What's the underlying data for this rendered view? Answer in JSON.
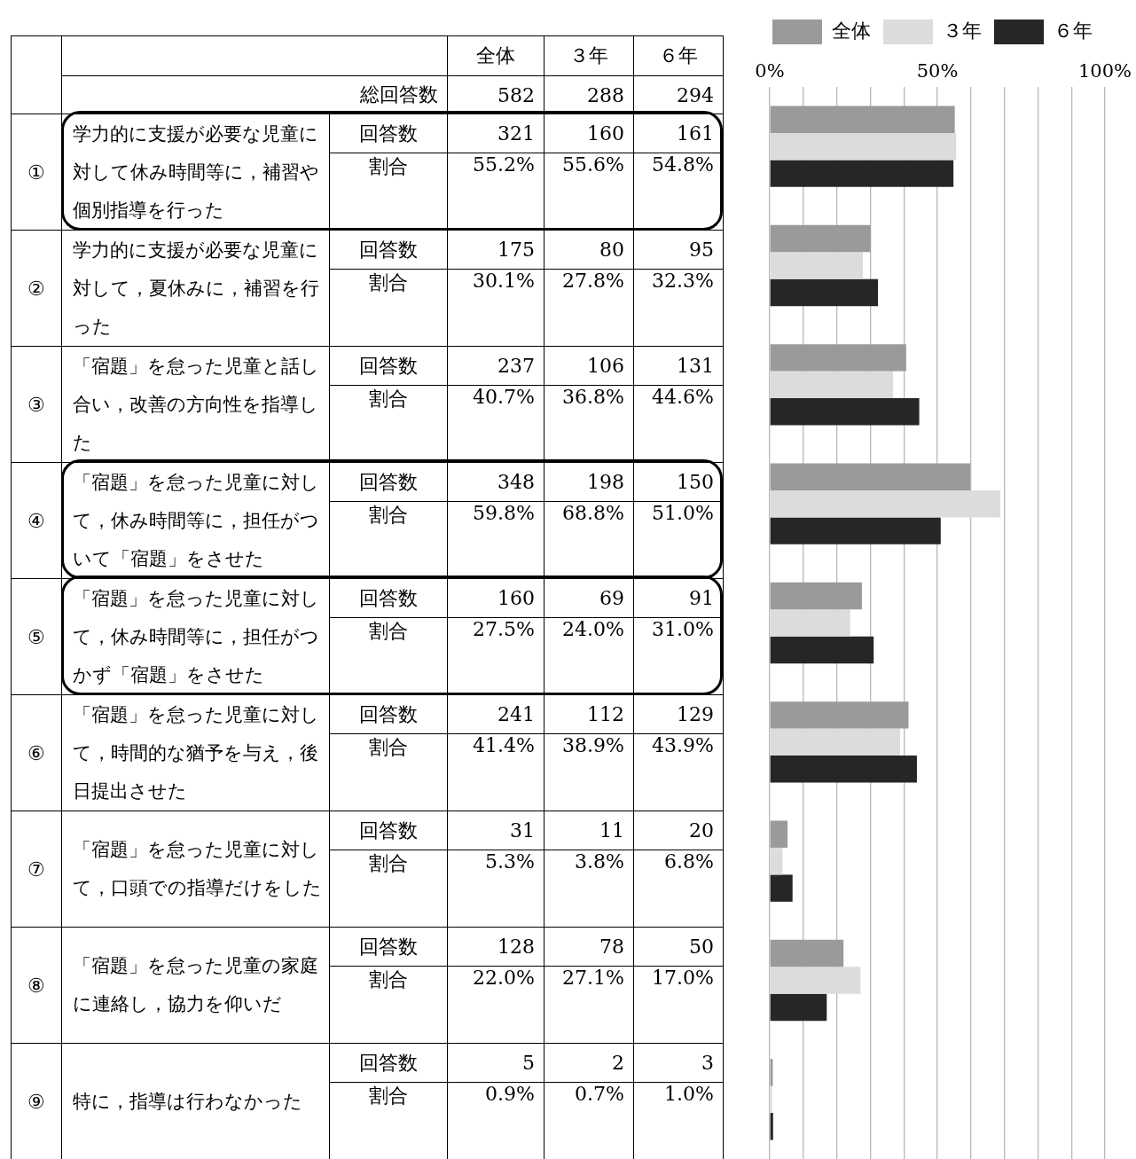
{
  "chart_data": [
    {
      "type": "other",
      "categories": [
        "学力的に支援が必要な児童に対して休み時間等に，補習や個別指導を行った",
        "学力的に支援が必要な児童に対して，夏休みに，補習を行った",
        "「宿題」を怠った児童と話し合い，改善の方向性を指導した",
        "「宿題」を怠った児童に対して，休み時間等に，担任がついて「宿題」をさせた",
        "「宿題」を怠った児童に対して，休み時間等に，担任がつかず「宿題」をさせた",
        "「宿題」を怠った児童に対して，時間的な猶予を与え，後日提出させた",
        "「宿題」を怠った児童に対して，口頭での指導だけをした",
        "「宿題」を怠った児童の家庭に連絡し，協力を仰いだ",
        "特に，指導は行わなかった"
      ],
      "totals": [
        "582",
        "288",
        "294"
      ],
      "annotations": [
        "総回答数",
        "回答数",
        "割合",
        "321",
        "160",
        "161",
        "175",
        "80",
        "95",
        "237",
        "106",
        "131",
        "348",
        "198",
        "150",
        "160",
        "69",
        "91",
        "241",
        "112",
        "129",
        "31",
        "11",
        "20",
        "128",
        "78",
        "50",
        "5",
        "2",
        "3"
      ]
    },
    {
      "type": "bar",
      "orientation": "horizontal",
      "categories": [
        "①",
        "②",
        "③",
        "④",
        "⑤",
        "⑥",
        "⑦",
        "⑧",
        "⑨"
      ],
      "series": [
        {
          "name": "全体",
          "color": "#9a9a9a",
          "values": [
            55.2,
            30.1,
            40.7,
            59.8,
            27.5,
            41.4,
            5.3,
            22.0,
            0.9
          ],
          "value_labels": [
            "55.2%",
            "30.1%",
            "40.7%",
            "59.8%",
            "27.5%",
            "41.4%",
            "5.3%",
            "22.0%",
            "0.9%"
          ]
        },
        {
          "name": "３年",
          "color": "#dcdcdc",
          "values": [
            55.6,
            27.8,
            36.8,
            68.8,
            24.0,
            38.9,
            3.8,
            27.1,
            0.7
          ],
          "value_labels": [
            "55.6%",
            "27.8%",
            "36.8%",
            "68.8%",
            "24.0%",
            "38.9%",
            "3.8%",
            "27.1%",
            "0.7%"
          ]
        },
        {
          "name": "６年",
          "color": "#262626",
          "values": [
            54.8,
            32.3,
            44.6,
            51.0,
            31.0,
            43.9,
            6.8,
            17.0,
            1.0
          ],
          "value_labels": [
            "54.8%",
            "32.3%",
            "44.6%",
            "51.0%",
            "31.0%",
            "43.9%",
            "6.8%",
            "17.0%",
            "1.0%"
          ]
        }
      ],
      "xlim": [
        0,
        100
      ],
      "xticks": [
        {
          "value": 0,
          "label": "0%"
        },
        {
          "value": 10,
          "label": null
        },
        {
          "value": 20,
          "label": null
        },
        {
          "value": 30,
          "label": null
        },
        {
          "value": 40,
          "label": null
        },
        {
          "value": 50,
          "label": "50%"
        },
        {
          "value": 60,
          "label": null
        },
        {
          "value": 70,
          "label": null
        },
        {
          "value": 80,
          "label": null
        },
        {
          "value": 90,
          "label": null
        },
        {
          "value": 100,
          "label": "100%"
        }
      ],
      "grid": "x",
      "legend": "top right",
      "tick_labels": "x"
    }
  ]
}
